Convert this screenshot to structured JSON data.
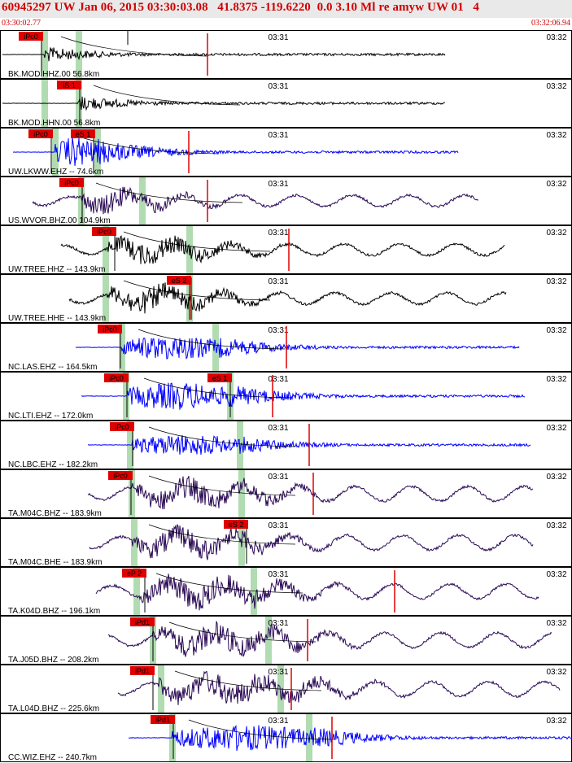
{
  "header": {
    "title": "60945297 UW Jan 06, 2015 03:30:03.08   41.8375 -119.6220  0.0 3.10 Ml re amyw UW 01   4",
    "start_time": "03:30:02.77",
    "end_time": "03:32:06.94"
  },
  "colors": {
    "title_red": "#d00000",
    "header_bg": "#e9e9e9",
    "blue_trace": "#0000ff",
    "black_trace": "#000000",
    "purple_trace": "#2a0a55",
    "pick_red": "#e00000",
    "phase_green": "#a8d8a8"
  },
  "chart_data": {
    "type": "line",
    "time_axis": {
      "start": "03:30:02.77",
      "end": "03:32:06.94",
      "ticks": [
        "03:31",
        "03:32"
      ]
    },
    "channels": [
      {
        "label": "BK.MOD.HHZ.00 56.8km",
        "color": "black",
        "picks": [
          {
            "label": "iPc0",
            "at": 1
          },
          {
            "label": "",
            "at": 0
          }
        ],
        "trace": {
          "start": 3,
          "end": 547,
          "onset": 55,
          "energy": [
            55,
            55
          ],
          "amp": 10,
          "noise": 0.2,
          "osc": 0
        }
      },
      {
        "label": "BK.MOD.HHN.00 56.8km",
        "color": "black",
        "picks": [
          {
            "label": "iS 1",
            "at": 0
          }
        ],
        "trace": {
          "start": 3,
          "end": 547,
          "onset": 95,
          "energy": [
            55,
            95
          ],
          "amp": 10,
          "noise": 0.2,
          "osc": 0
        }
      },
      {
        "label": "UW.LKWW.EHZ -- 74.6km",
        "color": "blue",
        "picks": [
          {
            "label": "iPc0",
            "at": 0
          },
          {
            "label": "eS 1",
            "at": 0
          }
        ],
        "trace": {
          "start": 16,
          "end": 563,
          "onset": 68,
          "energy": [
            68,
            118
          ],
          "amp": 17,
          "noise": 0.2,
          "osc": 0
        }
      },
      {
        "label": "US.WVOR.BHZ.00 104.9km",
        "color": "purple",
        "picks": [
          {
            "label": "iPc0",
            "at": 0
          }
        ],
        "trace": {
          "start": 40,
          "end": 588,
          "onset": 98,
          "energy": [
            98,
            172
          ],
          "amp": 11,
          "noise": 1.5,
          "osc": 7
        }
      },
      {
        "label": "UW.TREE.HHZ -- 143.9km",
        "color": "black",
        "picks": [
          {
            "label": "iPc0",
            "at": 0
          }
        ],
        "trace": {
          "start": 75,
          "end": 620,
          "onset": 132,
          "energy": [
            132,
            232
          ],
          "amp": 11,
          "noise": 1.5,
          "osc": 7
        }
      },
      {
        "label": "UW.TREE.HHE -- 143.9km",
        "color": "black",
        "picks": [
          {
            "label": "eS 2",
            "at": 0
          }
        ],
        "trace": {
          "start": 85,
          "end": 622,
          "onset": 132,
          "energy": [
            132,
            232
          ],
          "amp": 12,
          "noise": 1.5,
          "osc": 7
        }
      },
      {
        "label": "NC.LAS.EHZ -- 164.5km",
        "color": "blue",
        "picks": [
          {
            "label": "iPc0",
            "at": 0
          }
        ],
        "trace": {
          "start": 93,
          "end": 638,
          "onset": 150,
          "energy": [
            150,
            270
          ],
          "amp": 13,
          "noise": 0.3,
          "osc": 0
        }
      },
      {
        "label": "NC.LTI.EHZ -- 172.0km",
        "color": "blue",
        "picks": [
          {
            "label": "iPc0",
            "at": 0
          },
          {
            "label": "eS 1",
            "at": 0
          }
        ],
        "trace": {
          "start": 100,
          "end": 645,
          "onset": 157,
          "energy": [
            157,
            280
          ],
          "amp": 15,
          "noise": 0.3,
          "osc": 0
        }
      },
      {
        "label": "NC.LBC.EHZ -- 182.2km",
        "color": "blue",
        "picks": [
          {
            "label": "iPc0",
            "at": 0
          }
        ],
        "trace": {
          "start": 108,
          "end": 652,
          "onset": 163,
          "energy": [
            163,
            295
          ],
          "amp": 11,
          "noise": 0.3,
          "osc": 0
        }
      },
      {
        "label": "TA.M04C.BHZ -- 183.9km",
        "color": "purple",
        "picks": [
          {
            "label": "iPc0",
            "at": 0
          }
        ],
        "trace": {
          "start": 108,
          "end": 655,
          "onset": 163,
          "energy": [
            163,
            295
          ],
          "amp": 12,
          "noise": 1.5,
          "osc": 9
        }
      },
      {
        "label": "TA.M04C.BHE -- 183.9km",
        "color": "purple",
        "picks": [
          {
            "label": "eS 2",
            "at": 0
          }
        ],
        "trace": {
          "start": 110,
          "end": 655,
          "onset": 163,
          "energy": [
            163,
            295
          ],
          "amp": 12,
          "noise": 1.5,
          "osc": 9
        }
      },
      {
        "label": "TA.K04D.BHZ -- 196.1km",
        "color": "purple",
        "picks": [
          {
            "label": "eP 2",
            "at": 0
          }
        ],
        "trace": {
          "start": 118,
          "end": 662,
          "onset": 172,
          "energy": [
            172,
            312
          ],
          "amp": 13,
          "noise": 1.5,
          "osc": 9
        }
      },
      {
        "label": "TA.J05D.BHZ -- 208.2km",
        "color": "purple",
        "picks": [
          {
            "label": "iPd1",
            "at": 0
          }
        ],
        "trace": {
          "start": 133,
          "end": 678,
          "onset": 188,
          "energy": [
            188,
            330
          ],
          "amp": 13,
          "noise": 1.5,
          "osc": 9
        }
      },
      {
        "label": "TA.L04D.BHZ -- 225.6km",
        "color": "purple",
        "picks": [
          {
            "label": "iPd1",
            "at": 0
          }
        ],
        "trace": {
          "start": 145,
          "end": 688,
          "onset": 195,
          "energy": [
            195,
            360
          ],
          "amp": 13,
          "noise": 1.5,
          "osc": 9
        }
      },
      {
        "label": "CC.WIZ.EHZ -- 240.7km",
        "color": "blue",
        "picks": [
          {
            "label": "iPd1",
            "at": 0
          }
        ],
        "trace": {
          "start": 158,
          "end": 703,
          "onset": 212,
          "energy": [
            212,
            385
          ],
          "amp": 14,
          "noise": 0.3,
          "osc": 0
        }
      }
    ]
  }
}
